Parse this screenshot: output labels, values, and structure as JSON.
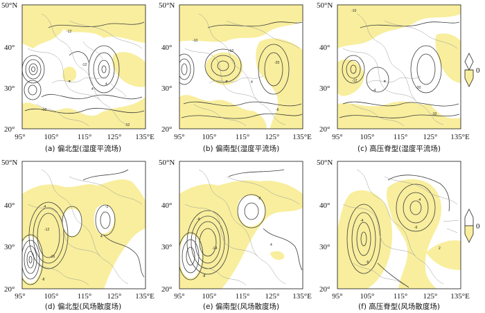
{
  "figure": {
    "panels": [
      {
        "id": "a",
        "caption": "(a) 偏北型(湿度平流场)",
        "lat_labels": [
          "50°N",
          "40°",
          "30°",
          "20°"
        ],
        "lon_labels": [
          "95°",
          "105°",
          "115°",
          "125°",
          "135°E"
        ],
        "contour_labels": [
          "-12",
          "-12",
          "4",
          "4",
          "-10",
          "-12"
        ]
      },
      {
        "id": "b",
        "caption": "(b) 偏南型(湿度平流场)",
        "lat_labels": [
          "50°N",
          "40°",
          "30°",
          "20°"
        ],
        "lon_labels": [
          "95°",
          "105°",
          "115°",
          "125°",
          "135°E"
        ],
        "contour_labels": [
          "-10",
          "-12",
          "4",
          "-20",
          "-6"
        ]
      },
      {
        "id": "c",
        "caption": "(c) 高压脊型(湿度平流场)",
        "lat_labels": [
          "50°N",
          "40°",
          "30°",
          "20°"
        ],
        "lon_labels": [
          "95°",
          "105°",
          "115°",
          "125°",
          "135°E"
        ],
        "contour_labels": [
          "-10",
          "-12",
          "-4",
          "-20",
          "-10"
        ]
      },
      {
        "id": "d",
        "caption": "(d) 偏北型(风场散度场)",
        "lat_labels": [
          "50°N",
          "40°",
          "30°",
          "20°"
        ],
        "lon_labels": [
          "95°",
          "105°",
          "115°",
          "125°",
          "135°E"
        ],
        "contour_labels": [
          "-4",
          "-12",
          "-2",
          "-16",
          "-8",
          "4"
        ]
      },
      {
        "id": "e",
        "caption": "(e) 偏南型(风场散度场)",
        "lat_labels": [
          "50°N",
          "40°",
          "30°",
          "20°"
        ],
        "lon_labels": [
          "95°",
          "105°",
          "115°",
          "125°",
          "135°E"
        ],
        "contour_labels": [
          "-2",
          "-4",
          "-14",
          "-8",
          "4"
        ]
      },
      {
        "id": "f",
        "caption": "(f) 高压脊型(风场散度场)",
        "lat_labels": [
          "50°N",
          "40°",
          "30°",
          "20°"
        ],
        "lon_labels": [
          "95°",
          "105°",
          "115°",
          "125°",
          "135°E"
        ],
        "contour_labels": [
          "-4",
          "-4",
          "2",
          "-6",
          "-6"
        ]
      }
    ],
    "colorbars": [
      {
        "id": "top",
        "label": "0"
      },
      {
        "id": "bottom",
        "label": "0"
      }
    ],
    "colors": {
      "positive_fill": "#f8ee9d",
      "contour": "#3a3a3a",
      "border": "#9a9a9a"
    }
  }
}
